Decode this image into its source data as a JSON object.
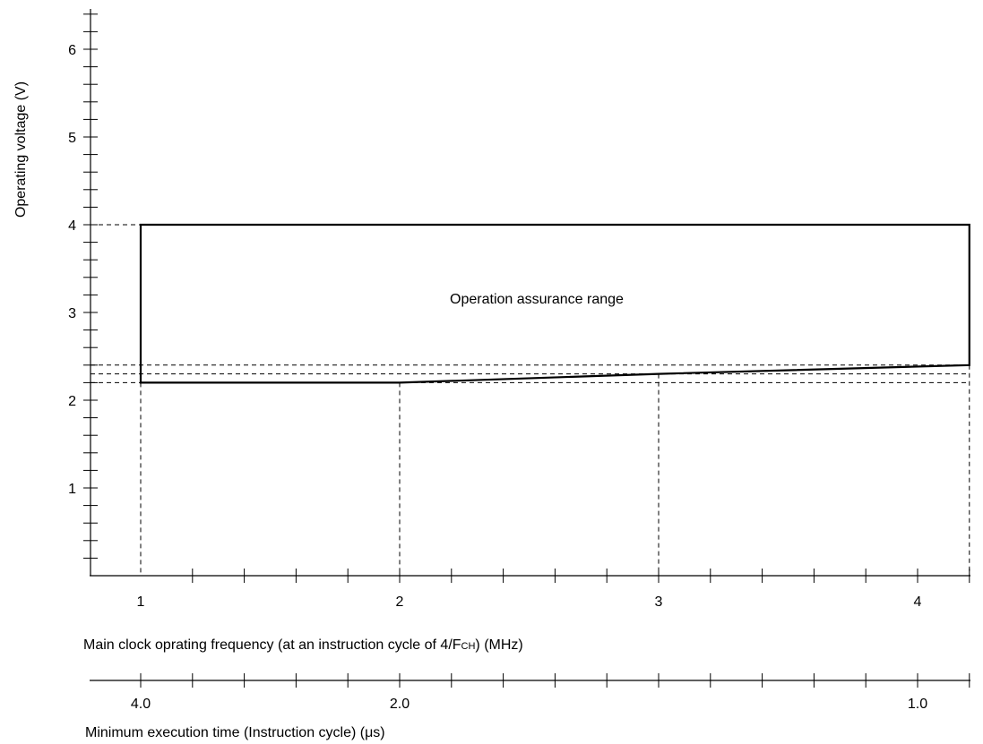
{
  "chart_data": {
    "type": "area",
    "ylabel": "Operating voltage (V)",
    "xlabel_prefix": "Main clock oprating frequency (at an instruction cycle of 4/F",
    "xlabel_subscript": "CH",
    "xlabel_suffix": ") (MHz)",
    "x2label": "Minimum execution time (Instruction cycle) (μs)",
    "region_label": "Operation assurance range",
    "ylim": [
      0,
      6.5
    ],
    "xlim": [
      0.8,
      4.2
    ],
    "y_ticks": [
      1,
      2,
      3,
      4,
      5,
      6
    ],
    "y_tick_labels": [
      "1",
      "2",
      "3",
      "4",
      "5",
      "6"
    ],
    "x_ticks": [
      1,
      2,
      3,
      4
    ],
    "x_tick_labels": [
      "1",
      "2",
      "3",
      "4"
    ],
    "x2_tick_labels": [
      {
        "label": "4.0",
        "at_frequency": 1
      },
      {
        "label": "2.0",
        "at_frequency": 2
      },
      {
        "label": "1.0",
        "at_frequency": 4
      }
    ],
    "region_boundary": [
      {
        "x": 1.0,
        "y": 2.2
      },
      {
        "x": 2.0,
        "y": 2.2
      },
      {
        "x": 3.0,
        "y": 2.3
      },
      {
        "x": 4.2,
        "y": 2.4
      },
      {
        "x": 4.2,
        "y": 4.0
      },
      {
        "x": 1.0,
        "y": 4.0
      }
    ],
    "reference_voltages": [
      4.0,
      2.4,
      2.3,
      2.2
    ],
    "reference_frequencies": [
      1.0,
      2.0,
      3.0,
      4.2
    ],
    "grid": false
  }
}
